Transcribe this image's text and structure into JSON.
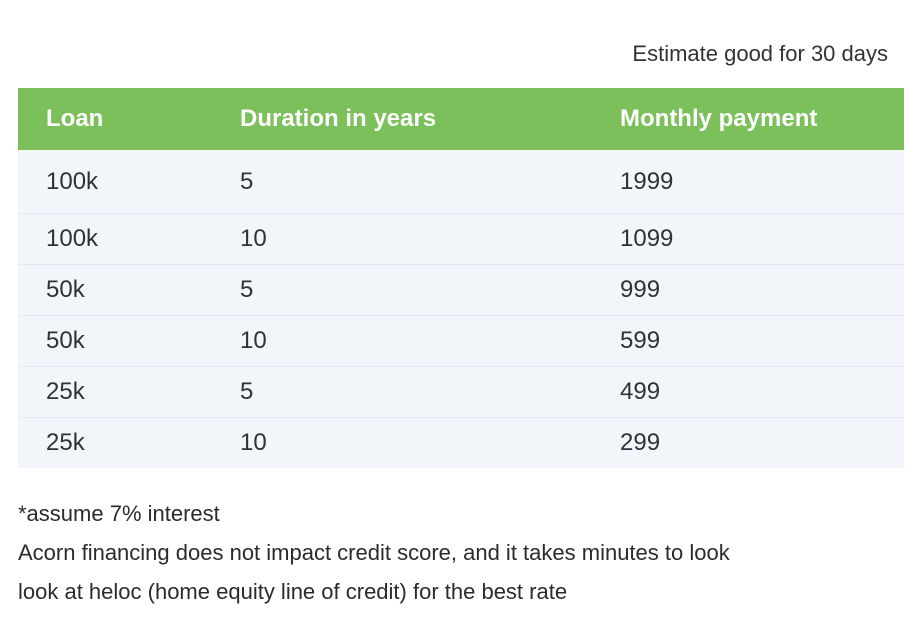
{
  "note": {
    "text": "Estimate good for 30 days"
  },
  "table": {
    "columns": [
      "Loan",
      "Duration in years",
      "Monthly payment"
    ],
    "rows": [
      {
        "loan": "100k",
        "duration": "5",
        "payment": "1999"
      },
      {
        "loan": "100k",
        "duration": "10",
        "payment": "1099"
      },
      {
        "loan": "50k",
        "duration": "5",
        "payment": "999"
      },
      {
        "loan": "50k",
        "duration": "10",
        "payment": "599"
      },
      {
        "loan": "25k",
        "duration": "5",
        "payment": "499"
      },
      {
        "loan": "25k",
        "duration": "10",
        "payment": "299"
      }
    ],
    "colors": {
      "header_background": "#7bc05a",
      "header_text": "#ffffff",
      "row_background": "#f2f5f9",
      "divider": "#e3e9ef",
      "body_text": "#2e3338"
    }
  },
  "footnotes": {
    "interest": "*assume 7% interest",
    "credit": "Acorn financing does not impact credit score, and it takes minutes to look",
    "heloc": "look at heloc (home equity line of credit) for the best rate"
  }
}
